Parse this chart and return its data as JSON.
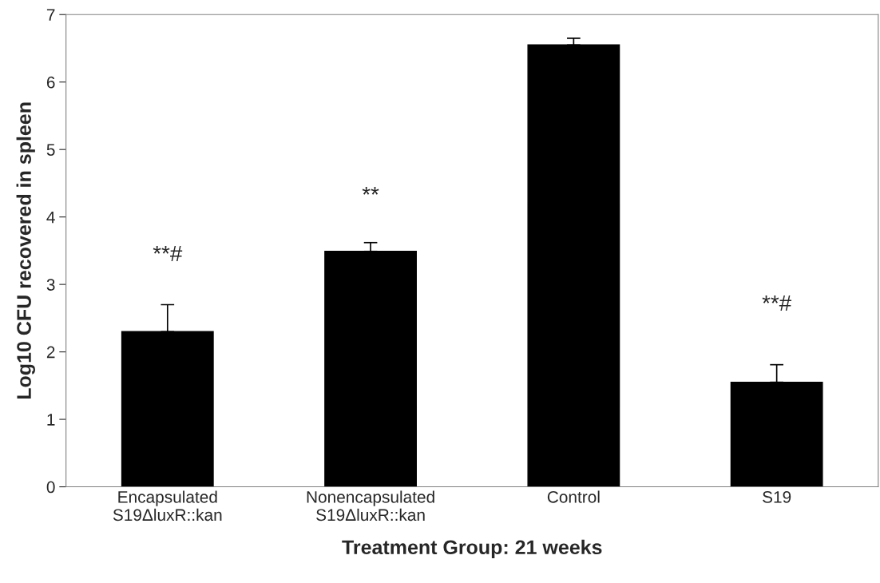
{
  "chart_data": {
    "type": "bar",
    "xlabel": "Treatment Group: 21 weeks",
    "ylabel": "Log10 CFU recovered in spleen",
    "categories": [
      "Encapsulated\nS19ΔluxR::kan",
      "Nonencapsulated\nS19ΔluxR::kan",
      "Control",
      "S19"
    ],
    "values": [
      2.3,
      3.49,
      6.55,
      1.55
    ],
    "errors": [
      [
        2.3,
        2.7
      ],
      [
        3.49,
        3.62
      ],
      [
        6.55,
        6.65
      ],
      [
        1.55,
        1.81
      ]
    ],
    "color": "#000000",
    "ylim": [
      0,
      7
    ],
    "yticks": [
      0,
      1,
      2,
      3,
      4,
      5,
      6,
      7
    ],
    "grid": false,
    "annotations": [
      "**#",
      "**",
      "**#"
    ]
  }
}
